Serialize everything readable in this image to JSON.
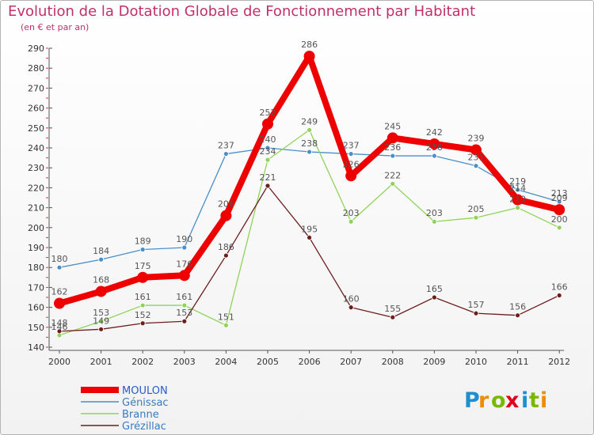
{
  "chart_data": {
    "type": "line",
    "title": "Evolution de la Dotation Globale de Fonctionnement par Habitant",
    "subtitle": "(en € et par an)",
    "x": [
      "2000",
      "2001",
      "2002",
      "2003",
      "2004",
      "2005",
      "2006",
      "2007",
      "2008",
      "2009",
      "2010",
      "2011",
      "2012"
    ],
    "ylim": [
      140,
      290
    ],
    "yticks": [
      140,
      150,
      160,
      170,
      180,
      190,
      200,
      210,
      220,
      230,
      240,
      250,
      260,
      270,
      280,
      290
    ],
    "grid": false,
    "legend_position": "bottom-left",
    "series": [
      {
        "name": "Génissac",
        "color": "#4a8fc9",
        "values": [
          180,
          184,
          189,
          190,
          237,
          240,
          238,
          237,
          236,
          236,
          231,
          219,
          213
        ]
      },
      {
        "name": "Branne",
        "color": "#8fd45a",
        "values": [
          146,
          153,
          161,
          161,
          151,
          234,
          249,
          203,
          222,
          203,
          205,
          210,
          200
        ]
      },
      {
        "name": "Grézillac",
        "color": "#6e1d1d",
        "values": [
          148,
          149,
          152,
          153,
          186,
          221,
          195,
          160,
          155,
          165,
          157,
          156,
          166
        ]
      },
      {
        "name": "MOULON",
        "color": "#ee0000",
        "values": [
          162,
          168,
          175,
          176,
          206,
          252,
          286,
          226,
          245,
          242,
          239,
          214,
          209
        ]
      }
    ],
    "legend": [
      {
        "name": "MOULON",
        "color": "#ee0000"
      },
      {
        "name": "Génissac",
        "color": "#4a8fc9"
      },
      {
        "name": "Branne",
        "color": "#8fd45a"
      },
      {
        "name": "Grézillac",
        "color": "#6e1d1d"
      }
    ]
  },
  "logo": {
    "text": "Proxiti",
    "letter_colors": [
      "#1b8fd1",
      "#f08c00",
      "#7ab800",
      "#e2001a",
      "#1b8fd1",
      "#7ab800",
      "#f08c00"
    ]
  }
}
